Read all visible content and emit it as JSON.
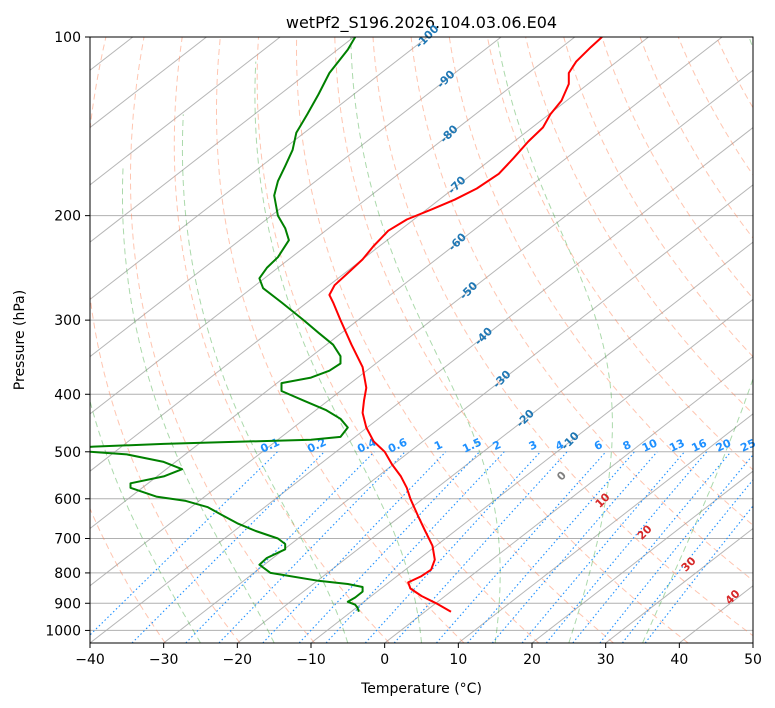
{
  "chart_data": {
    "type": "line",
    "title": "wetPf2_S196.2026.104.03.06.E04",
    "xlabel": "Temperature (°C)",
    "ylabel": "Pressure (hPa)",
    "xlim": [
      -40,
      50
    ],
    "ylim": [
      1050,
      100
    ],
    "y_scale": "log",
    "grid": true,
    "x_ticks": [
      "−40",
      "−30",
      "−20",
      "−10",
      "0",
      "10",
      "20",
      "30",
      "40",
      "50"
    ],
    "y_ticks": [
      "100",
      "200",
      "300",
      "400",
      "500",
      "600",
      "700",
      "800",
      "900",
      "1000"
    ],
    "colors": {
      "temperature": "#ff0000",
      "dewpoint": "#008000",
      "isotherm": "#a9a9a9",
      "dry_adiabat": "#ff7f50",
      "moist_adiabat": "#2ca02c",
      "mixing_ratio": "#1e90ff",
      "mixing_label": "#1e90ff",
      "skew_label": "#1f77b4",
      "wet_label": "#d62728"
    },
    "series": [
      {
        "key": "temperature",
        "points": [
          [
            9.0,
            930
          ],
          [
            7.0,
            900
          ],
          [
            5.0,
            875
          ],
          [
            3.5,
            850
          ],
          [
            3.2,
            830
          ],
          [
            5.0,
            810
          ],
          [
            6.3,
            790
          ],
          [
            6.8,
            760
          ],
          [
            6.5,
            720
          ],
          [
            5.5,
            680
          ],
          [
            4.5,
            640
          ],
          [
            3.5,
            600
          ],
          [
            3.0,
            575
          ],
          [
            2.2,
            550
          ],
          [
            1.0,
            525
          ],
          [
            0.0,
            500
          ],
          [
            -1.5,
            480
          ],
          [
            -2.5,
            455
          ],
          [
            -3.0,
            430
          ],
          [
            -2.8,
            410
          ],
          [
            -2.5,
            390
          ],
          [
            -3.0,
            360
          ],
          [
            -4.5,
            330
          ],
          [
            -6.0,
            300
          ],
          [
            -7.0,
            280
          ],
          [
            -7.5,
            272
          ],
          [
            -6.8,
            262
          ],
          [
            -5.0,
            250
          ],
          [
            -3.0,
            237
          ],
          [
            -1.5,
            225
          ],
          [
            0.5,
            212
          ],
          [
            3.0,
            203
          ],
          [
            6.5,
            195
          ],
          [
            9.5,
            188
          ],
          [
            12.5,
            180
          ],
          [
            15.5,
            170
          ],
          [
            17.5,
            160
          ],
          [
            19.5,
            150
          ],
          [
            21.5,
            142
          ],
          [
            22.5,
            135
          ],
          [
            24.0,
            128
          ],
          [
            25.0,
            120
          ],
          [
            25.0,
            115
          ],
          [
            26.0,
            110
          ],
          [
            28.0,
            104
          ],
          [
            29.5,
            100
          ]
        ]
      },
      {
        "key": "dewpoint",
        "points": [
          [
            -3.5,
            930
          ],
          [
            -3.7,
            915
          ],
          [
            -4.0,
            905
          ],
          [
            -5.0,
            895
          ],
          [
            -4.0,
            880
          ],
          [
            -3.0,
            860
          ],
          [
            -3.0,
            845
          ],
          [
            -5.0,
            835
          ],
          [
            -9.0,
            825
          ],
          [
            -15.5,
            800
          ],
          [
            -17.0,
            775
          ],
          [
            -16.0,
            755
          ],
          [
            -13.5,
            730
          ],
          [
            -13.5,
            715
          ],
          [
            -14.5,
            700
          ],
          [
            -17.5,
            680
          ],
          [
            -20.0,
            660
          ],
          [
            -22.0,
            640
          ],
          [
            -24.0,
            620
          ],
          [
            -27.0,
            605
          ],
          [
            -31.0,
            595
          ],
          [
            -34.5,
            575
          ],
          [
            -34.5,
            565
          ],
          [
            -30.0,
            550
          ],
          [
            -27.5,
            535
          ],
          [
            -30.0,
            520
          ],
          [
            -35.0,
            505
          ],
          [
            -45.0,
            495
          ],
          [
            -39.5,
            490
          ],
          [
            -30.0,
            485
          ],
          [
            -20.0,
            481
          ],
          [
            -10.0,
            477
          ],
          [
            -6.0,
            472
          ],
          [
            -5.0,
            455
          ],
          [
            -6.0,
            440
          ],
          [
            -8.0,
            425
          ],
          [
            -11.0,
            410
          ],
          [
            -14.0,
            395
          ],
          [
            -14.0,
            383
          ],
          [
            -10.0,
            375
          ],
          [
            -7.5,
            365
          ],
          [
            -6.0,
            355
          ],
          [
            -6.0,
            345
          ],
          [
            -7.0,
            330
          ],
          [
            -9.0,
            315
          ],
          [
            -11.0,
            300
          ],
          [
            -14.0,
            280
          ],
          [
            -16.5,
            265
          ],
          [
            -17.0,
            255
          ],
          [
            -16.0,
            245
          ],
          [
            -14.5,
            235
          ],
          [
            -13.0,
            220
          ],
          [
            -13.5,
            210
          ],
          [
            -14.5,
            200
          ],
          [
            -15.0,
            185
          ],
          [
            -14.5,
            175
          ],
          [
            -13.5,
            165
          ],
          [
            -12.5,
            155
          ],
          [
            -12.0,
            145
          ],
          [
            -10.5,
            135
          ],
          [
            -9.0,
            125
          ],
          [
            -7.5,
            115
          ],
          [
            -5.0,
            105
          ],
          [
            -4.0,
            100
          ]
        ]
      }
    ],
    "isotherm_values": [
      -160,
      -150,
      -140,
      -130,
      -120,
      -110,
      -100,
      -90,
      -80,
      -70,
      -60,
      -50,
      -40,
      -30,
      -20,
      -10,
      0,
      10,
      20,
      30,
      40,
      50
    ],
    "dry_adiabat_thetas": [
      230,
      240,
      250,
      260,
      270,
      280,
      290,
      300,
      310,
      320,
      330,
      340,
      350,
      360,
      370,
      380,
      390,
      400,
      410,
      420,
      430,
      440,
      450,
      460
    ],
    "moist_adiabat_surface_temps": [
      -25,
      -15,
      -5,
      5,
      15,
      25,
      35
    ],
    "mixing_ratio_lines": [
      "0.1",
      "0.2",
      "0.4",
      "0.6",
      "1",
      "1.5",
      "2",
      "3",
      "4",
      "6",
      "8",
      "10",
      "13",
      "16",
      "20",
      "25",
      "30",
      "36"
    ],
    "skew_labels": [
      "-100",
      "-90",
      "-80",
      "-70",
      "-60",
      "-50",
      "-40",
      "-30",
      "-20",
      "-10"
    ],
    "wet_labels": [
      {
        "text": "0",
        "color": "gray"
      },
      {
        "text": "10",
        "color": "red"
      },
      {
        "text": "20",
        "color": "red"
      },
      {
        "text": "30",
        "color": "red"
      },
      {
        "text": "40",
        "color": "red"
      }
    ]
  }
}
